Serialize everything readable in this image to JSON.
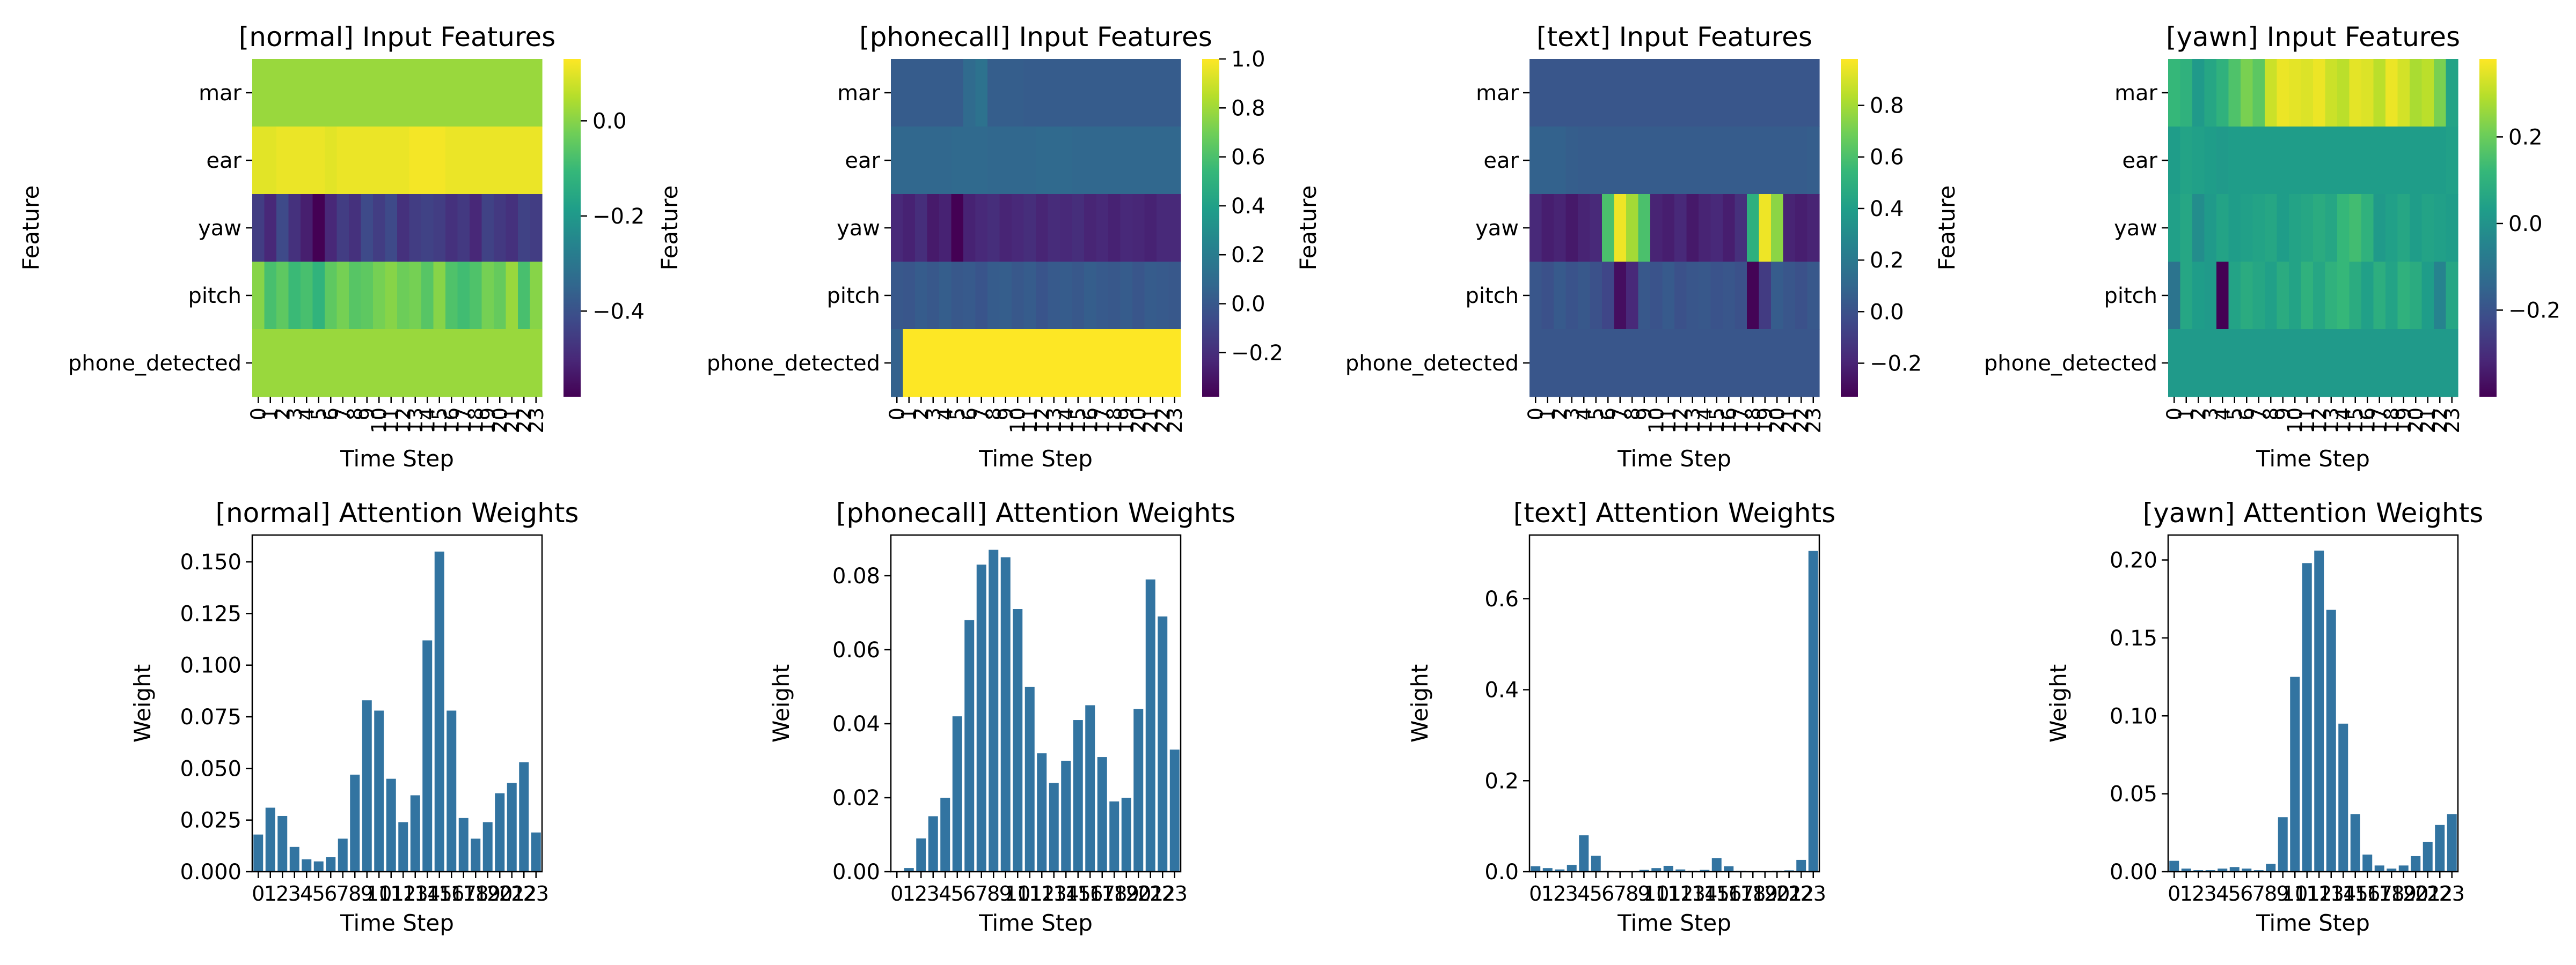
{
  "colors": {
    "bar": "#3274a1",
    "colormap": "viridis",
    "colormap_stops": [
      "#440154",
      "#482878",
      "#3e4989",
      "#31688e",
      "#26828e",
      "#1f9e89",
      "#35b779",
      "#6ece58",
      "#b5de2b",
      "#fde725"
    ]
  },
  "chart_data": [
    {
      "type": "heatmap",
      "title": "[normal] Input Features",
      "xlabel": "Time Step",
      "ylabel": "Feature",
      "x": [
        "0",
        "1",
        "2",
        "3",
        "4",
        "5",
        "6",
        "7",
        "8",
        "9",
        "10",
        "11",
        "12",
        "13",
        "14",
        "15",
        "16",
        "17",
        "18",
        "19",
        "20",
        "21",
        "22",
        "23"
      ],
      "y": [
        "mar",
        "ear",
        "yaw",
        "pitch",
        "phone_detected"
      ],
      "vmin": -0.58,
      "vmax": 0.13,
      "colorbar_ticks": [
        -0.4,
        -0.2,
        0.0
      ],
      "colorbar_tick_labels": [
        "−0.4",
        "−0.2",
        "0.0"
      ],
      "z": [
        [
          0.02,
          0.02,
          0.02,
          0.02,
          0.02,
          0.02,
          0.02,
          0.02,
          0.02,
          0.02,
          0.02,
          0.02,
          0.02,
          0.02,
          0.02,
          0.02,
          0.02,
          0.02,
          0.02,
          0.02,
          0.02,
          0.02,
          0.02,
          0.02
        ],
        [
          0.1,
          0.1,
          0.11,
          0.11,
          0.11,
          0.11,
          0.1,
          0.11,
          0.11,
          0.11,
          0.11,
          0.11,
          0.11,
          0.12,
          0.12,
          0.12,
          0.11,
          0.11,
          0.11,
          0.11,
          0.11,
          0.11,
          0.11,
          0.11
        ],
        [
          -0.45,
          -0.5,
          -0.42,
          -0.48,
          -0.52,
          -0.58,
          -0.5,
          -0.45,
          -0.48,
          -0.42,
          -0.45,
          -0.42,
          -0.48,
          -0.45,
          -0.44,
          -0.45,
          -0.48,
          -0.46,
          -0.5,
          -0.44,
          -0.46,
          -0.48,
          -0.44,
          -0.45
        ],
        [
          0.0,
          -0.08,
          -0.05,
          -0.1,
          -0.08,
          -0.12,
          -0.05,
          -0.02,
          -0.06,
          -0.05,
          -0.02,
          0.0,
          -0.03,
          -0.02,
          -0.06,
          0.0,
          -0.07,
          -0.09,
          -0.07,
          -0.02,
          -0.04,
          0.02,
          -0.08,
          0.0
        ],
        [
          0.02,
          0.02,
          0.02,
          0.02,
          0.02,
          0.02,
          0.02,
          0.02,
          0.02,
          0.02,
          0.02,
          0.02,
          0.02,
          0.02,
          0.02,
          0.02,
          0.02,
          0.02,
          0.02,
          0.02,
          0.02,
          0.02,
          0.02,
          0.02
        ]
      ]
    },
    {
      "type": "heatmap",
      "title": "[phonecall] Input Features",
      "xlabel": "Time Step",
      "ylabel": "Feature",
      "x": [
        "0",
        "1",
        "2",
        "3",
        "4",
        "5",
        "6",
        "7",
        "8",
        "9",
        "10",
        "11",
        "12",
        "13",
        "14",
        "15",
        "16",
        "17",
        "18",
        "19",
        "20",
        "21",
        "22",
        "23"
      ],
      "y": [
        "mar",
        "ear",
        "yaw",
        "pitch",
        "phone_detected"
      ],
      "vmin": -0.38,
      "vmax": 1.0,
      "colorbar_ticks": [
        -0.2,
        0.0,
        0.2,
        0.4,
        0.6,
        0.8,
        1.0
      ],
      "colorbar_tick_labels": [
        "−0.2",
        "0.0",
        "0.2",
        "0.4",
        "0.6",
        "0.8",
        "1.0"
      ],
      "z": [
        [
          0.02,
          0.02,
          0.02,
          0.02,
          0.02,
          0.02,
          0.1,
          0.14,
          0.03,
          0.03,
          0.03,
          0.02,
          0.02,
          0.02,
          0.02,
          0.02,
          0.02,
          0.02,
          0.02,
          0.02,
          0.02,
          0.02,
          0.02,
          0.02
        ],
        [
          0.08,
          0.08,
          0.08,
          0.08,
          0.08,
          0.09,
          0.09,
          0.09,
          0.08,
          0.08,
          0.08,
          0.08,
          0.09,
          0.09,
          0.09,
          0.08,
          0.08,
          0.08,
          0.08,
          0.08,
          0.08,
          0.08,
          0.08,
          0.08
        ],
        [
          -0.22,
          -0.25,
          -0.2,
          -0.28,
          -0.25,
          -0.38,
          -0.25,
          -0.22,
          -0.2,
          -0.24,
          -0.22,
          -0.2,
          -0.24,
          -0.21,
          -0.22,
          -0.2,
          -0.24,
          -0.22,
          -0.25,
          -0.22,
          -0.23,
          -0.25,
          -0.22,
          -0.22
        ],
        [
          0.0,
          -0.01,
          0.02,
          0.0,
          0.03,
          0.0,
          0.01,
          -0.02,
          0.02,
          0.03,
          0.0,
          0.02,
          -0.02,
          0.01,
          0.02,
          0.0,
          0.03,
          0.01,
          0.0,
          0.02,
          -0.01,
          0.02,
          0.01,
          0.0
        ],
        [
          0.05,
          1.0,
          1.0,
          1.0,
          1.0,
          1.0,
          1.0,
          1.0,
          1.0,
          1.0,
          1.0,
          1.0,
          1.0,
          1.0,
          1.0,
          1.0,
          1.0,
          1.0,
          1.0,
          1.0,
          1.0,
          1.0,
          1.0,
          1.0
        ]
      ]
    },
    {
      "type": "heatmap",
      "title": "[text] Input Features",
      "xlabel": "Time Step",
      "ylabel": "Feature",
      "x": [
        "0",
        "1",
        "2",
        "3",
        "4",
        "5",
        "6",
        "7",
        "8",
        "9",
        "10",
        "11",
        "12",
        "13",
        "14",
        "15",
        "16",
        "17",
        "18",
        "19",
        "20",
        "21",
        "22",
        "23"
      ],
      "y": [
        "mar",
        "ear",
        "yaw",
        "pitch",
        "phone_detected"
      ],
      "vmin": -0.33,
      "vmax": 0.98,
      "colorbar_ticks": [
        -0.2,
        0.0,
        0.2,
        0.4,
        0.6,
        0.8
      ],
      "colorbar_tick_labels": [
        "−0.2",
        "0.0",
        "0.2",
        "0.4",
        "0.6",
        "0.8"
      ],
      "z": [
        [
          0.02,
          0.02,
          0.02,
          0.02,
          0.02,
          0.02,
          0.02,
          0.02,
          0.02,
          0.02,
          0.02,
          0.02,
          0.02,
          0.02,
          0.02,
          0.02,
          0.02,
          0.02,
          0.02,
          0.02,
          0.02,
          0.02,
          0.02,
          0.02
        ],
        [
          0.08,
          0.08,
          0.08,
          0.06,
          0.05,
          0.05,
          0.05,
          0.05,
          0.05,
          0.05,
          0.05,
          0.05,
          0.05,
          0.05,
          0.05,
          0.05,
          0.05,
          0.05,
          0.05,
          0.05,
          0.05,
          0.05,
          0.05,
          0.06
        ],
        [
          -0.18,
          -0.22,
          -0.2,
          -0.24,
          -0.2,
          -0.18,
          0.6,
          0.95,
          0.8,
          0.6,
          -0.2,
          -0.22,
          -0.18,
          -0.24,
          -0.2,
          -0.18,
          -0.22,
          -0.15,
          0.5,
          0.95,
          0.75,
          -0.2,
          -0.22,
          -0.2
        ],
        [
          0.02,
          0.0,
          0.04,
          0.01,
          0.03,
          0.0,
          -0.05,
          -0.28,
          -0.18,
          0.03,
          0.01,
          0.04,
          0.0,
          0.02,
          0.03,
          0.01,
          0.02,
          0.0,
          -0.32,
          -0.1,
          0.05,
          0.02,
          0.0,
          0.03
        ],
        [
          0.02,
          0.02,
          0.02,
          0.02,
          0.02,
          0.02,
          0.02,
          0.02,
          0.02,
          0.02,
          0.02,
          0.02,
          0.02,
          0.02,
          0.02,
          0.02,
          0.02,
          0.02,
          0.02,
          0.02,
          0.02,
          0.02,
          0.02,
          0.02
        ]
      ]
    },
    {
      "type": "heatmap",
      "title": "[yawn] Input Features",
      "xlabel": "Time Step",
      "ylabel": "Feature",
      "x": [
        "0",
        "1",
        "2",
        "3",
        "4",
        "5",
        "6",
        "7",
        "8",
        "9",
        "10",
        "11",
        "12",
        "13",
        "14",
        "15",
        "16",
        "17",
        "18",
        "19",
        "20",
        "21",
        "22",
        "23"
      ],
      "y": [
        "mar",
        "ear",
        "yaw",
        "pitch",
        "phone_detected"
      ],
      "vmin": -0.4,
      "vmax": 0.38,
      "colorbar_ticks": [
        -0.2,
        0.0,
        0.2
      ],
      "colorbar_tick_labels": [
        "−0.2",
        "0.0",
        "0.2"
      ],
      "z": [
        [
          0.12,
          0.1,
          0.02,
          0.06,
          0.1,
          0.16,
          0.22,
          0.18,
          0.32,
          0.36,
          0.35,
          0.34,
          0.36,
          0.32,
          0.3,
          0.35,
          0.34,
          0.3,
          0.36,
          0.33,
          0.28,
          0.3,
          0.22,
          0.05
        ],
        [
          0.03,
          0.05,
          0.04,
          0.03,
          0.02,
          0.03,
          0.03,
          0.03,
          0.03,
          0.03,
          0.03,
          0.03,
          0.03,
          0.03,
          0.03,
          0.03,
          0.03,
          0.03,
          0.03,
          0.03,
          0.03,
          0.03,
          0.03,
          0.04
        ],
        [
          0.04,
          0.06,
          -0.02,
          0.02,
          0.05,
          0.03,
          0.04,
          0.05,
          0.06,
          0.03,
          0.05,
          0.06,
          0.08,
          0.06,
          0.12,
          0.14,
          0.1,
          0.02,
          0.04,
          0.06,
          0.03,
          0.05,
          0.04,
          0.03
        ],
        [
          -0.1,
          0.06,
          0.03,
          0.02,
          -0.4,
          0.05,
          0.08,
          0.06,
          0.04,
          0.08,
          0.05,
          0.1,
          0.06,
          0.1,
          0.12,
          0.08,
          0.04,
          0.09,
          0.05,
          0.1,
          0.08,
          0.03,
          -0.05,
          0.06
        ],
        [
          0.02,
          0.02,
          0.02,
          0.02,
          0.02,
          0.02,
          0.02,
          0.02,
          0.02,
          0.02,
          0.02,
          0.02,
          0.02,
          0.02,
          0.02,
          0.02,
          0.02,
          0.02,
          0.02,
          0.02,
          0.02,
          0.02,
          0.02,
          0.02
        ]
      ]
    },
    {
      "type": "bar",
      "title": "[normal] Attention Weights",
      "xlabel": "Time Step",
      "ylabel": "Weight",
      "categories": [
        "0",
        "1",
        "2",
        "3",
        "4",
        "5",
        "6",
        "7",
        "8",
        "9",
        "10",
        "11",
        "12",
        "13",
        "14",
        "15",
        "16",
        "17",
        "18",
        "19",
        "20",
        "21",
        "22",
        "23"
      ],
      "values": [
        0.018,
        0.031,
        0.027,
        0.012,
        0.006,
        0.005,
        0.007,
        0.016,
        0.047,
        0.083,
        0.078,
        0.045,
        0.024,
        0.037,
        0.112,
        0.155,
        0.078,
        0.026,
        0.016,
        0.024,
        0.038,
        0.043,
        0.053,
        0.019
      ],
      "ylim": [
        0,
        0.163
      ],
      "yticks": [
        0.0,
        0.025,
        0.05,
        0.075,
        0.1,
        0.125,
        0.15
      ],
      "ytick_labels": [
        "0.000",
        "0.025",
        "0.050",
        "0.075",
        "0.100",
        "0.125",
        "0.150"
      ]
    },
    {
      "type": "bar",
      "title": "[phonecall] Attention Weights",
      "xlabel": "Time Step",
      "ylabel": "Weight",
      "categories": [
        "0",
        "1",
        "2",
        "3",
        "4",
        "5",
        "6",
        "7",
        "8",
        "9",
        "10",
        "11",
        "12",
        "13",
        "14",
        "15",
        "16",
        "17",
        "18",
        "19",
        "20",
        "21",
        "22",
        "23"
      ],
      "values": [
        0.0,
        0.001,
        0.009,
        0.015,
        0.02,
        0.042,
        0.068,
        0.083,
        0.087,
        0.085,
        0.071,
        0.05,
        0.032,
        0.024,
        0.03,
        0.041,
        0.045,
        0.031,
        0.019,
        0.02,
        0.044,
        0.079,
        0.069,
        0.033
      ],
      "ylim": [
        0,
        0.091
      ],
      "yticks": [
        0.0,
        0.02,
        0.04,
        0.06,
        0.08
      ],
      "ytick_labels": [
        "0.00",
        "0.02",
        "0.04",
        "0.06",
        "0.08"
      ]
    },
    {
      "type": "bar",
      "title": "[text] Attention Weights",
      "xlabel": "Time Step",
      "ylabel": "Weight",
      "categories": [
        "0",
        "1",
        "2",
        "3",
        "4",
        "5",
        "6",
        "7",
        "8",
        "9",
        "10",
        "11",
        "12",
        "13",
        "14",
        "15",
        "16",
        "17",
        "18",
        "19",
        "20",
        "21",
        "22",
        "23"
      ],
      "values": [
        0.012,
        0.008,
        0.005,
        0.015,
        0.08,
        0.035,
        0.002,
        0.001,
        0.001,
        0.004,
        0.008,
        0.013,
        0.005,
        0.002,
        0.004,
        0.03,
        0.012,
        0.002,
        0.001,
        0.001,
        0.002,
        0.003,
        0.026,
        0.705
      ],
      "ylim": [
        0,
        0.74
      ],
      "yticks": [
        0.0,
        0.2,
        0.4,
        0.6
      ],
      "ytick_labels": [
        "0.0",
        "0.2",
        "0.4",
        "0.6"
      ]
    },
    {
      "type": "bar",
      "title": "[yawn] Attention Weights",
      "xlabel": "Time Step",
      "ylabel": "Weight",
      "categories": [
        "0",
        "1",
        "2",
        "3",
        "4",
        "5",
        "6",
        "7",
        "8",
        "9",
        "10",
        "11",
        "12",
        "13",
        "14",
        "15",
        "16",
        "17",
        "18",
        "19",
        "20",
        "21",
        "22",
        "23"
      ],
      "values": [
        0.007,
        0.002,
        0.001,
        0.001,
        0.002,
        0.003,
        0.002,
        0.001,
        0.005,
        0.035,
        0.125,
        0.198,
        0.206,
        0.168,
        0.095,
        0.037,
        0.011,
        0.004,
        0.002,
        0.004,
        0.01,
        0.019,
        0.03,
        0.037
      ],
      "ylim": [
        0,
        0.216
      ],
      "yticks": [
        0.0,
        0.05,
        0.1,
        0.15,
        0.2
      ],
      "ytick_labels": [
        "0.00",
        "0.05",
        "0.10",
        "0.15",
        "0.20"
      ]
    }
  ]
}
